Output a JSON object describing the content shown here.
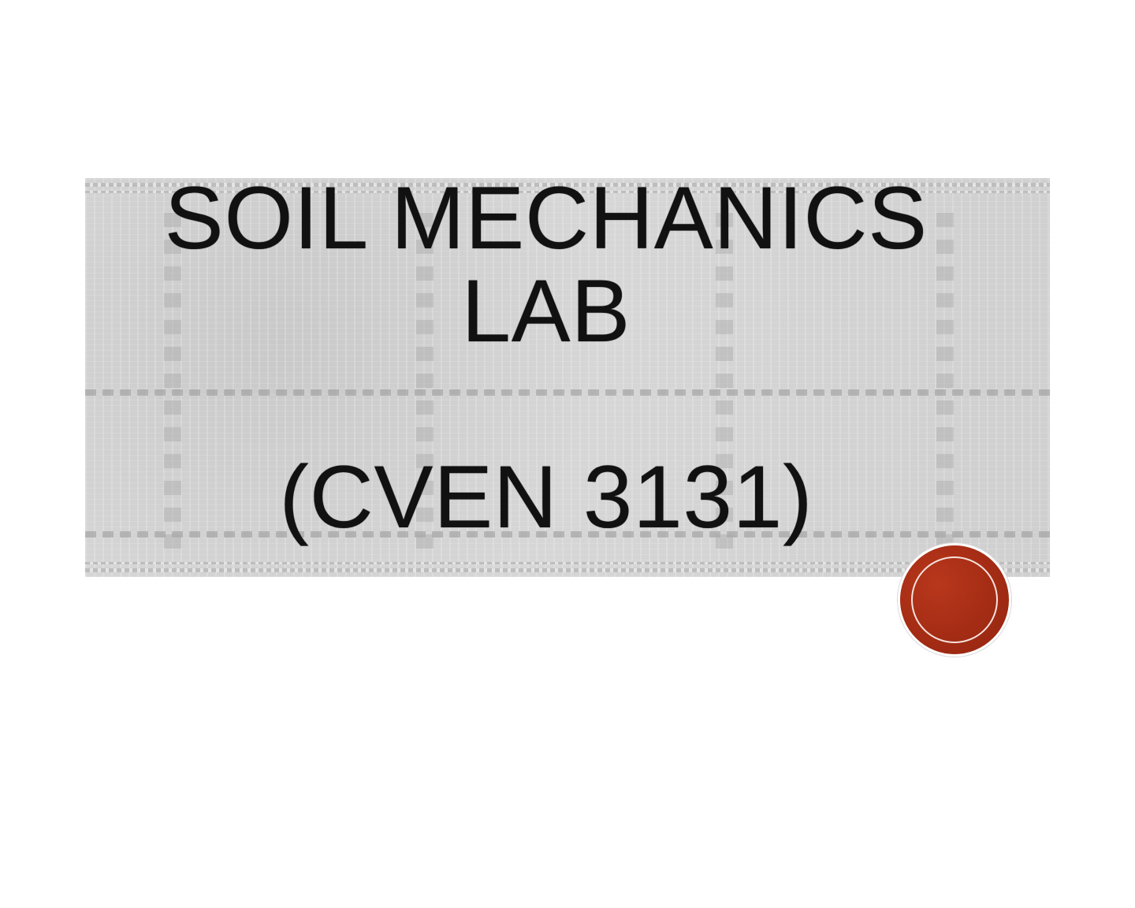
{
  "slide": {
    "title": "SOIL MECHANICS\nLAB\n\n(CVEN 3131)",
    "accent_color": "#a42c14",
    "banner_color": "#d3d3d3"
  }
}
